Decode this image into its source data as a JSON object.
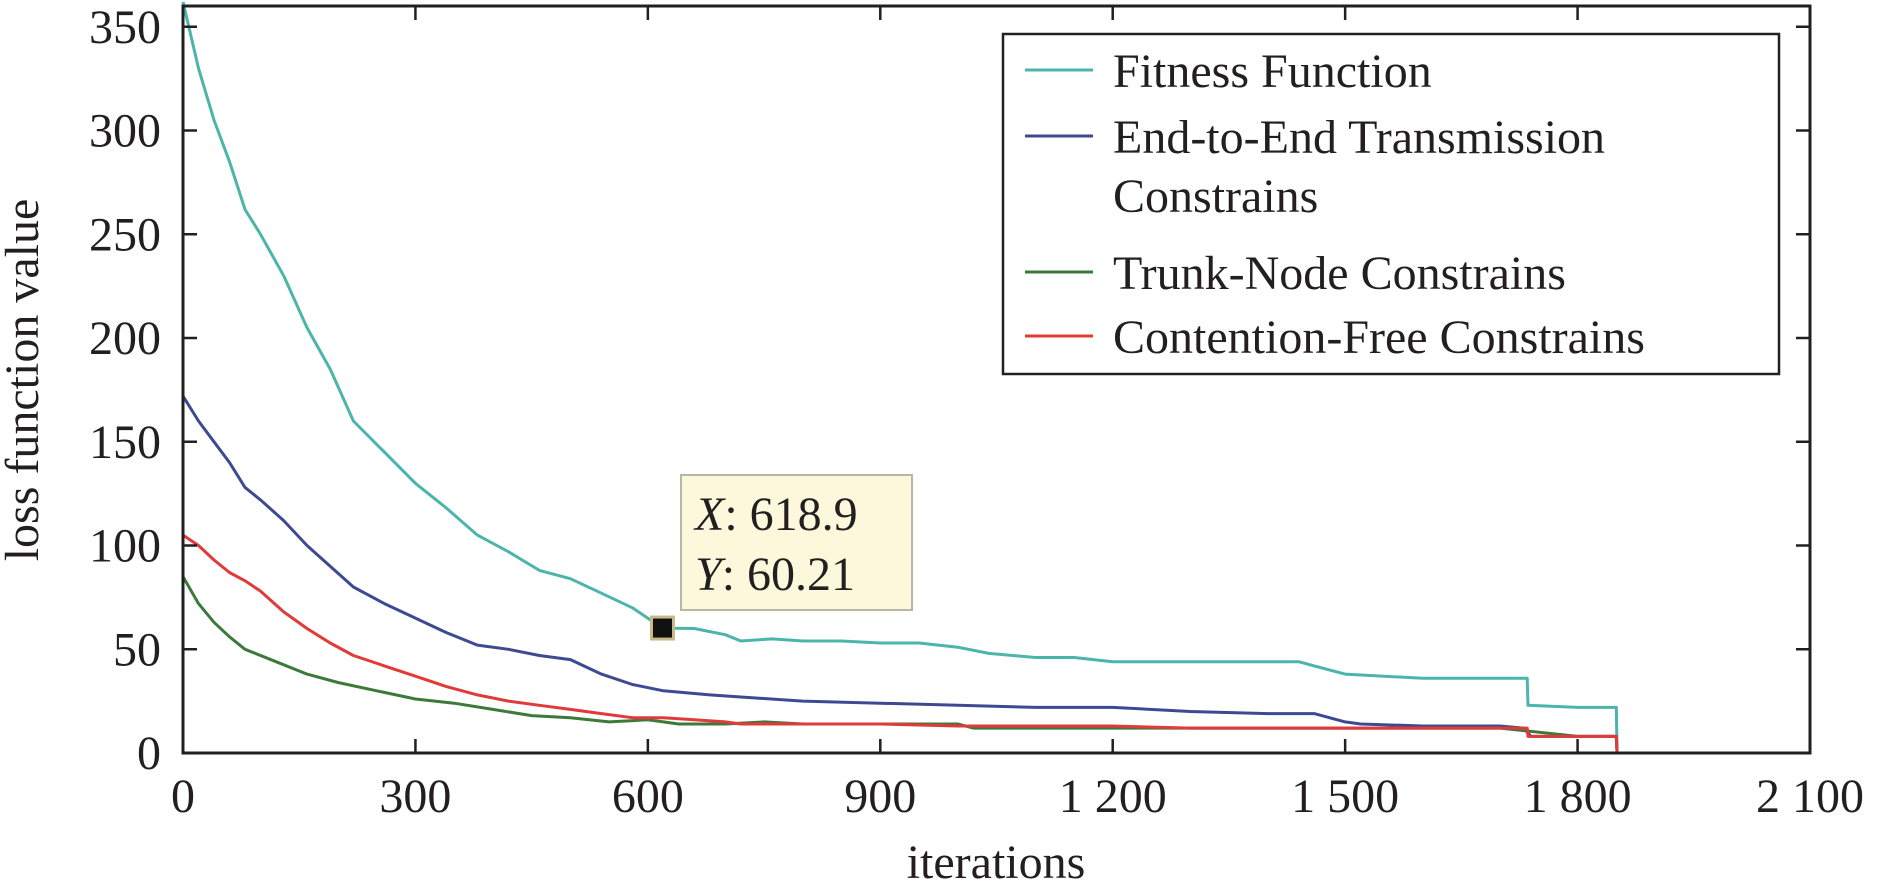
{
  "chart_data": {
    "type": "line",
    "xlabel": "iterations",
    "ylabel": "loss function value",
    "xlim": [
      0,
      2100
    ],
    "ylim": [
      0,
      360
    ],
    "x_ticks": [
      0,
      300,
      600,
      900,
      1200,
      1500,
      1800,
      2100
    ],
    "x_tick_labels": [
      "0",
      "300",
      "600",
      "900",
      "1 200",
      "1 500",
      "1 800",
      "2 100"
    ],
    "y_ticks": [
      0,
      50,
      100,
      150,
      200,
      250,
      300,
      350
    ],
    "y_tick_labels": [
      "0",
      "50",
      "100",
      "150",
      "200",
      "250",
      "300",
      "350"
    ],
    "grid": false,
    "legend_position": "top-right",
    "series": [
      {
        "name": "Fitness Function",
        "color": "#4cb5ab",
        "x": [
          0,
          20,
          40,
          60,
          80,
          100,
          130,
          160,
          190,
          220,
          260,
          300,
          340,
          380,
          420,
          460,
          500,
          540,
          580,
          618.9,
          660,
          700,
          720,
          760,
          800,
          850,
          900,
          950,
          1000,
          1040,
          1100,
          1150,
          1200,
          1300,
          1400,
          1440,
          1460,
          1500,
          1600,
          1700,
          1735,
          1736,
          1800,
          1850,
          1851
        ],
        "y": [
          362,
          330,
          305,
          285,
          262,
          250,
          230,
          205,
          185,
          160,
          145,
          130,
          118,
          105,
          97,
          88,
          84,
          77,
          70,
          60.21,
          60,
          57,
          54,
          55,
          54,
          54,
          53,
          53,
          51,
          48,
          46,
          46,
          44,
          44,
          44,
          44,
          42,
          38,
          36,
          36,
          36,
          23,
          22,
          22,
          0
        ]
      },
      {
        "name": "End-to-End Transmission Constrains",
        "color": "#3d4a91",
        "x": [
          0,
          20,
          40,
          60,
          80,
          100,
          130,
          160,
          190,
          220,
          260,
          300,
          340,
          380,
          420,
          460,
          500,
          540,
          580,
          620,
          680,
          720,
          800,
          900,
          1000,
          1100,
          1200,
          1300,
          1400,
          1460,
          1500,
          1520,
          1600,
          1700,
          1730,
          1740,
          1800,
          1850,
          1851
        ],
        "y": [
          172,
          160,
          150,
          140,
          128,
          122,
          112,
          100,
          90,
          80,
          72,
          65,
          58,
          52,
          50,
          47,
          45,
          38,
          33,
          30,
          28,
          27,
          25,
          24,
          23,
          22,
          22,
          20,
          19,
          19,
          15,
          14,
          13,
          13,
          12,
          8,
          8,
          8,
          0
        ]
      },
      {
        "name": "Trunk-Node Constrains",
        "color": "#3c7a3a",
        "x": [
          0,
          20,
          40,
          60,
          80,
          120,
          160,
          200,
          250,
          300,
          350,
          400,
          450,
          500,
          550,
          600,
          620,
          640,
          700,
          750,
          800,
          900,
          1000,
          1020,
          1100,
          1200,
          1300,
          1400,
          1500,
          1600,
          1700,
          1800,
          1850,
          1851
        ],
        "y": [
          85,
          72,
          63,
          56,
          50,
          44,
          38,
          34,
          30,
          26,
          24,
          21,
          18,
          17,
          15,
          16,
          15,
          14,
          14,
          15,
          14,
          14,
          14,
          12,
          12,
          12,
          12,
          12,
          12,
          12,
          12,
          8,
          8,
          0
        ]
      },
      {
        "name": "Contention-Free Constrains",
        "color": "#e03a3a",
        "x": [
          0,
          20,
          40,
          60,
          80,
          100,
          130,
          160,
          190,
          220,
          260,
          300,
          340,
          380,
          420,
          460,
          500,
          540,
          580,
          620,
          660,
          700,
          720,
          760,
          800,
          900,
          1000,
          1100,
          1200,
          1300,
          1400,
          1500,
          1600,
          1700,
          1735,
          1736,
          1800,
          1850,
          1851,
          2100
        ],
        "y": [
          105,
          100,
          93,
          87,
          83,
          78,
          68,
          60,
          53,
          47,
          42,
          37,
          32,
          28,
          25,
          23,
          21,
          19,
          17,
          17,
          16,
          15,
          14,
          14,
          14,
          14,
          13,
          13,
          13,
          12,
          12,
          12,
          12,
          12,
          12,
          8,
          8,
          8,
          0,
          0
        ]
      }
    ],
    "annotation": {
      "x_label": "X",
      "x_value": "618.9",
      "y_label": "Y",
      "y_value": "60.21",
      "x": 618.9,
      "y": 60.21
    }
  }
}
